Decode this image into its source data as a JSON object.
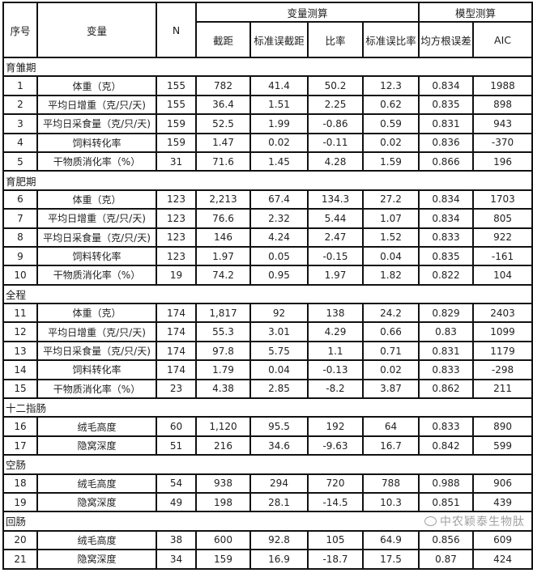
{
  "header": {
    "index": "序号",
    "variable": "变量",
    "n": "N",
    "group_variable_estimate": "变量测算",
    "group_model_estimate": "模型测算",
    "intercept": "截距",
    "se_intercept": "标准误截距",
    "ratio": "比率",
    "se_ratio": "标准误比率",
    "rmse": "均方根误差",
    "aic": "AIC"
  },
  "sections": [
    {
      "title": "育雏期",
      "rows": [
        [
          "1",
          "体重（克）",
          "155",
          "782",
          "41.4",
          "50.2",
          "12.3",
          "0.834",
          "1988"
        ],
        [
          "2",
          "平均日增重（克/只/天)",
          "155",
          "36.4",
          "1.51",
          "2.25",
          "0.62",
          "0.835",
          "898"
        ],
        [
          "3",
          "平均日采食量（克/只/天)",
          "159",
          "52.5",
          "1.99",
          "-0.86",
          "0.59",
          "0.831",
          "943"
        ],
        [
          "4",
          "饲料转化率",
          "159",
          "1.47",
          "0.02",
          "-0.11",
          "0.02",
          "0.836",
          "-370"
        ],
        [
          "5",
          "干物质消化率（%）",
          "31",
          "71.6",
          "1.45",
          "4.28",
          "1.59",
          "0.866",
          "196"
        ]
      ]
    },
    {
      "title": "育肥期",
      "rows": [
        [
          "6",
          "体重（克）",
          "123",
          "2,213",
          "67.4",
          "134.3",
          "27.2",
          "0.834",
          "1703"
        ],
        [
          "7",
          "平均日增重（克/只/天)",
          "123",
          "76.6",
          "2.32",
          "5.44",
          "1.07",
          "0.834",
          "805"
        ],
        [
          "8",
          "平均日采食量（克/只/天)",
          "123",
          "146",
          "4.24",
          "2.47",
          "1.52",
          "0.833",
          "922"
        ],
        [
          "9",
          "饲料转化率",
          "123",
          "1.97",
          "0.05",
          "-0.15",
          "0.04",
          "0.835",
          "-161"
        ],
        [
          "10",
          "干物质消化率（%）",
          "19",
          "74.2",
          "0.95",
          "1.97",
          "1.82",
          "0.822",
          "104"
        ]
      ]
    },
    {
      "title": "全程",
      "rows": [
        [
          "11",
          "体重（克）",
          "174",
          "1,817",
          "92",
          "138",
          "24.2",
          "0.829",
          "2403"
        ],
        [
          "12",
          "平均日增重（克/只/天)",
          "174",
          "55.3",
          "3.01",
          "4.29",
          "0.66",
          "0.83",
          "1099"
        ],
        [
          "13",
          "平均日采食量（克/只/天)",
          "174",
          "97.8",
          "5.75",
          "1.1",
          "0.71",
          "0.831",
          "1179"
        ],
        [
          "14",
          "饲料转化率",
          "174",
          "1.79",
          "0.04",
          "-0.13",
          "0.02",
          "0.833",
          "-298"
        ],
        [
          "15",
          "干物质消化率（%）",
          "23",
          "4.38",
          "2.85",
          "-8.2",
          "3.87",
          "0.862",
          "211"
        ]
      ]
    },
    {
      "title": "十二指肠",
      "rows": [
        [
          "16",
          "绒毛高度",
          "60",
          "1,120",
          "95.5",
          "192",
          "64",
          "0.833",
          "890"
        ],
        [
          "17",
          "隐窝深度",
          "51",
          "216",
          "34.6",
          "-9.63",
          "16.7",
          "0.842",
          "599"
        ]
      ]
    },
    {
      "title": "空肠",
      "rows": [
        [
          "18",
          "绒毛高度",
          "54",
          "938",
          "294",
          "720",
          "788",
          "0.988",
          "906"
        ],
        [
          "19",
          "隐窝深度",
          "49",
          "198",
          "28.1",
          "-14.5",
          "10.3",
          "0.851",
          "439"
        ]
      ]
    },
    {
      "title": "回肠",
      "rows": [
        [
          "20",
          "绒毛高度",
          "38",
          "600",
          "92.8",
          "105",
          "64.9",
          "0.856",
          "609"
        ],
        [
          "21",
          "隐窝深度",
          "34",
          "159",
          "16.9",
          "-18.7",
          "17.5",
          "0.87",
          "424"
        ]
      ]
    }
  ],
  "watermark": "中农颖泰生物肽"
}
